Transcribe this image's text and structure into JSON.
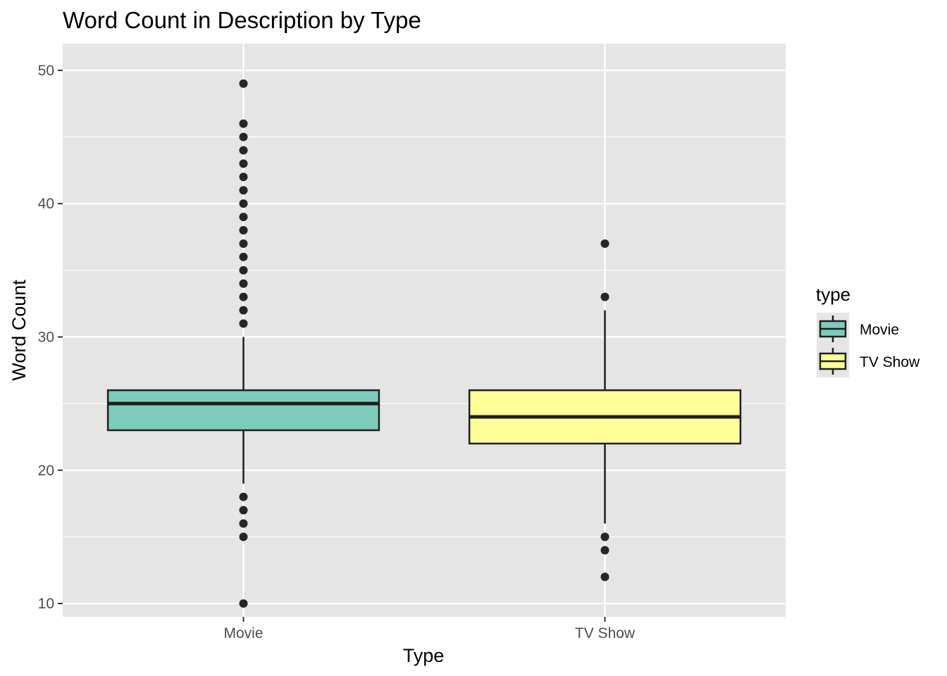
{
  "chart_data": {
    "type": "boxplot",
    "title": "Word Count in Description by Type",
    "xlabel": "Type",
    "ylabel": "Word Count",
    "ylim": [
      9,
      52
    ],
    "yticks": [
      10,
      20,
      30,
      40,
      50
    ],
    "categories": [
      "Movie",
      "TV Show"
    ],
    "boxes": [
      {
        "category": "Movie",
        "fill": "#7fcbbb",
        "q1": 23,
        "median": 25,
        "q3": 26,
        "whisker_low": 19,
        "whisker_high": 30,
        "outliers": [
          49,
          46,
          45,
          44,
          43,
          42,
          41,
          40,
          39,
          38,
          37,
          36,
          35,
          34,
          33,
          32,
          31,
          18,
          17,
          16,
          15,
          10
        ]
      },
      {
        "category": "TV Show",
        "fill": "#ffff99",
        "q1": 22,
        "median": 24,
        "q3": 26,
        "whisker_low": 16,
        "whisker_high": 32,
        "outliers": [
          37,
          33,
          15,
          14,
          12
        ]
      }
    ],
    "grid": true,
    "legend": {
      "title": "type",
      "position": "right",
      "entries": [
        {
          "label": "Movie",
          "fill": "#7fcbbb"
        },
        {
          "label": "TV Show",
          "fill": "#ffff99"
        }
      ]
    },
    "colors": {
      "panel_background": "#e5e5e5",
      "grid": "#ffffff",
      "box_stroke": "#1f1f1f",
      "point": "#262626"
    }
  }
}
